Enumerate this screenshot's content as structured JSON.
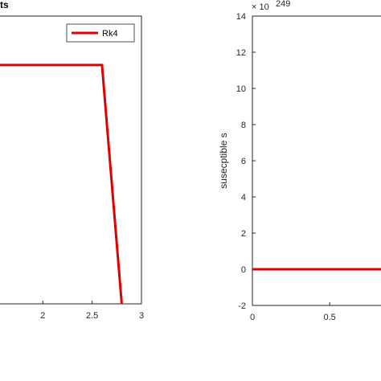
{
  "chart_data": [
    {
      "type": "line",
      "title": "ts",
      "xlabel": "",
      "ylabel": "",
      "x_ticks": [
        "2",
        "2.5",
        "3"
      ],
      "xlim": [
        1.55,
        3
      ],
      "legend": {
        "entries": [
          "Rk4"
        ],
        "placement": "top-right"
      },
      "series": [
        {
          "name": "Rk4",
          "color": "#e00000",
          "x": [
            1.55,
            2.6,
            2.8
          ],
          "y": [
            0.83,
            0.83,
            0.0
          ]
        }
      ],
      "ylim": [
        0,
        1
      ],
      "grid": false
    },
    {
      "type": "line",
      "title": "",
      "xlabel": "",
      "ylabel": "susecptible s",
      "y_exponent_base": "× 10",
      "y_exponent_power": "249",
      "x_ticks": [
        "0",
        "0.5"
      ],
      "y_ticks": [
        "14",
        "12",
        "10",
        "8",
        "6",
        "4",
        "2",
        "0",
        "-2"
      ],
      "xlim": [
        0,
        1.04
      ],
      "ylim": [
        -2,
        14
      ],
      "grid": false,
      "series": [
        {
          "name": "",
          "color": "#e00000",
          "x": [
            0,
            1.04
          ],
          "y": [
            0,
            0
          ]
        }
      ]
    }
  ]
}
